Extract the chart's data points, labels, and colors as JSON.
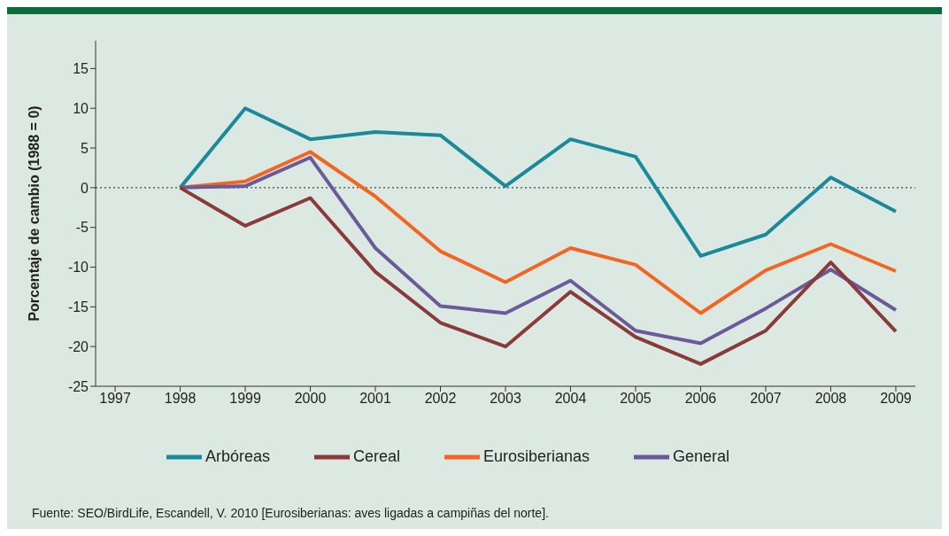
{
  "chart_data": {
    "type": "line",
    "ylabel": "Porcentaje de cambio (1988 = 0)",
    "x": [
      1998,
      1999,
      2000,
      2001,
      2002,
      2003,
      2004,
      2005,
      2006,
      2007,
      2008,
      2009
    ],
    "series": [
      {
        "name": "Arbóreas",
        "color": "#1a8a9a",
        "values": [
          0,
          10,
          6.1,
          7,
          6.6,
          0.2,
          6.1,
          3.9,
          -8.6,
          -5.9,
          1.3,
          -3.0
        ]
      },
      {
        "name": "Eurosiberianas",
        "color": "#f26522",
        "values": [
          0,
          0.8,
          4.5,
          -1.1,
          -8,
          -11.9,
          -7.6,
          -9.7,
          -15.8,
          -10.4,
          -7.1,
          -10.5
        ]
      },
      {
        "name": "General",
        "color": "#6a5a9a",
        "values": [
          0,
          0.2,
          3.8,
          -7.6,
          -14.9,
          -15.8,
          -11.7,
          -18,
          -19.6,
          -15.2,
          -10.3,
          -15.4
        ]
      },
      {
        "name": "Cereal",
        "color": "#8b3a3a",
        "values": [
          0,
          -4.8,
          -1.3,
          -10.6,
          -17,
          -20,
          -13.1,
          -18.8,
          -22.2,
          -18,
          -9.4,
          -18.1
        ]
      }
    ],
    "xlim": [
      1996.7,
      2009.3
    ],
    "xticks": [
      1997,
      1998,
      1999,
      2000,
      2001,
      2002,
      2003,
      2004,
      2005,
      2006,
      2007,
      2008,
      2009
    ],
    "ylim": [
      -25,
      18.5
    ],
    "yticks": [
      -25,
      -20,
      -15,
      -10,
      -5,
      0,
      5,
      10,
      15
    ],
    "ref_lines": [
      {
        "axis": "y",
        "value": 0,
        "color": "#222222",
        "line_style": "dotted"
      }
    ],
    "legend": "bottom",
    "grid": false,
    "marker": "none",
    "line_style": "solid",
    "annotations": [
      "Fuente: SEO/BirdLife, Escandell, V. 2010 [Eurosiberianas: aves ligadas a campiñas del norte]."
    ]
  }
}
